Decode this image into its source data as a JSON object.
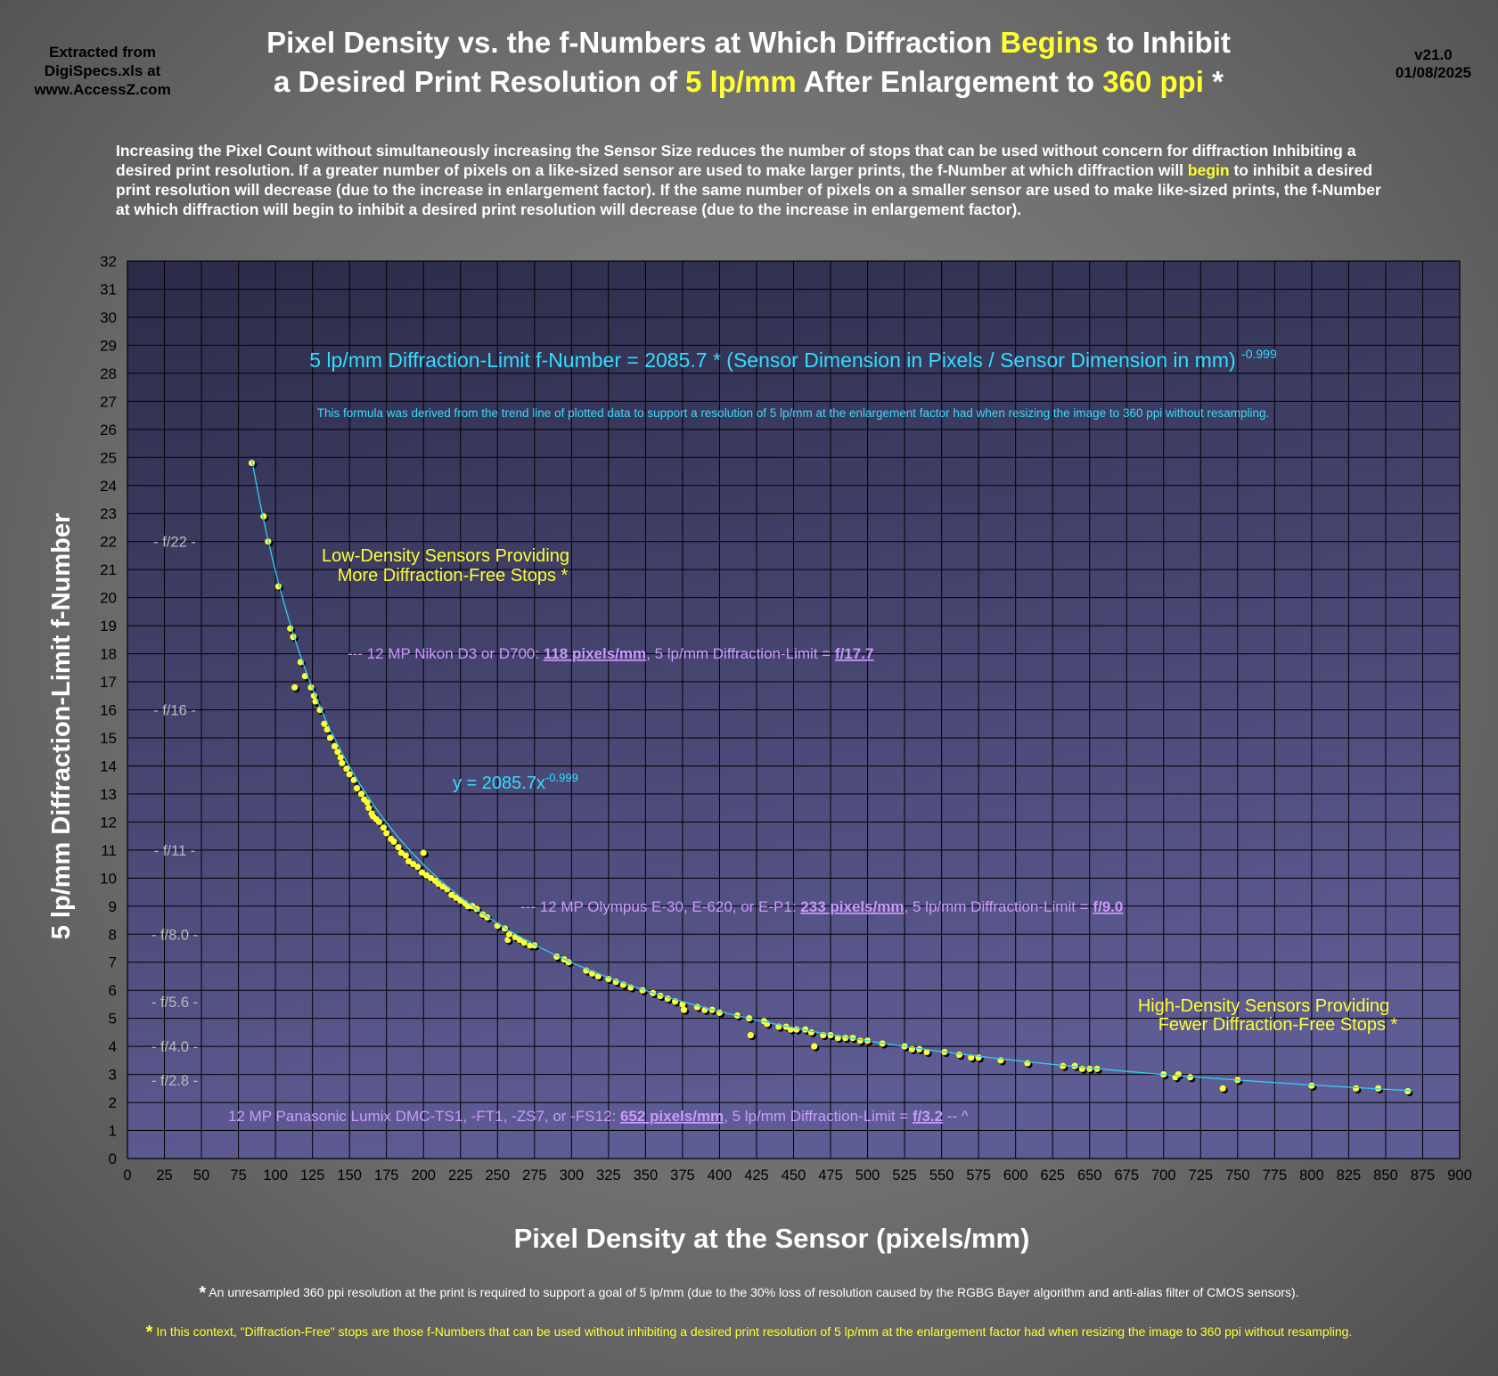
{
  "header": {
    "source_lines": [
      "Extracted from",
      "DigiSpecs.xls at",
      "www.AccessZ.com"
    ],
    "version": "v21.0",
    "date": "01/08/2025",
    "title_line1_a": "Pixel Density vs. the f-Numbers at Which Diffraction ",
    "title_line1_hl": "Begins",
    "title_line1_b": " to Inhibit",
    "title_line2_a": "a Desired Print Resolution of ",
    "title_line2_hl1": "5 lp/mm",
    "title_line2_b": " After Enlargement to ",
    "title_line2_hl2": "360 ppi",
    "title_line2_c": " *"
  },
  "intro": {
    "part1": "Increasing the Pixel Count without simultaneously increasing the Sensor Size reduces the number of stops that can be used without concern for diffraction Inhibiting a desired print resolution.  If a greater number of pixels on a like-sized sensor are used to make larger prints, the f-Number at which diffraction will ",
    "highlight": "begin",
    "part2": " to inhibit a desired print resolution will decrease (due to the increase in enlargement factor).  If the same number of pixels on a smaller sensor are used to make like-sized prints, the f-Number at which diffraction will begin to inhibit a desired print resolution will decrease (due to the increase in enlargement factor)."
  },
  "footnotes": {
    "note1_star": "*",
    "note1": " An unresampled 360 ppi resolution at the print is required to support a goal of 5 lp/mm (due to the 30% loss of resolution caused by the RGBG Bayer algorithm and anti-alias filter of CMOS sensors).",
    "note2_star": "*",
    "note2": "  In this context, \"Diffraction-Free\" stops are those f-Numbers that can be used without inhibiting a desired print resolution of 5 lp/mm at the enlargement factor had when resizing the image to 360 ppi without resampling."
  },
  "colors": {
    "plot_bg_top": "#2b2b48",
    "plot_bg_bottom": "#5e5c94",
    "grid": "#000000",
    "trend": "#33ccee",
    "point": "#ffff33",
    "formula": "#33ddff",
    "annotation_purple": "#cc99ff",
    "annotation_yellow": "#ffff33",
    "fstop_label": "#bbbbbb"
  },
  "chart_data": {
    "type": "scatter",
    "xlabel": "Pixel Density at the Sensor (pixels/mm)",
    "ylabel": "5 lp/mm Diffraction-Limit f-Number",
    "xlim": [
      0,
      900
    ],
    "ylim": [
      0,
      32
    ],
    "x_ticks": [
      0,
      25,
      50,
      75,
      100,
      125,
      150,
      175,
      200,
      225,
      250,
      275,
      300,
      325,
      350,
      375,
      400,
      425,
      450,
      475,
      500,
      525,
      550,
      575,
      600,
      625,
      650,
      675,
      700,
      725,
      750,
      775,
      800,
      825,
      850,
      875,
      900
    ],
    "y_ticks": [
      0,
      1,
      2,
      3,
      4,
      5,
      6,
      7,
      8,
      9,
      10,
      11,
      12,
      13,
      14,
      15,
      16,
      17,
      18,
      19,
      20,
      21,
      22,
      23,
      24,
      25,
      26,
      27,
      28,
      29,
      30,
      31,
      32
    ],
    "grid": true,
    "legend": "none",
    "trendline": {
      "label_prefix": "y = 2085.7x",
      "label_exp": "-0.999",
      "a": 2085.7,
      "b": -0.999,
      "x_from": 84,
      "x_to": 868
    },
    "formula_prefix": "5 lp/mm Diffraction-Limit f-Number = 2085.7 * (Sensor Dimension in Pixels / Sensor Dimension in mm) ",
    "formula_exp": "-0.999",
    "formula_note": "This formula was derived from the trend line of plotted data to support a resolution of 5 lp/mm at the enlargement factor had when resizing the image to 360 ppi without resampling.",
    "fstop_markers": [
      {
        "label": "- f/22 -",
        "y": 22
      },
      {
        "label": "- f/16 -",
        "y": 16
      },
      {
        "label": "- f/11 -",
        "y": 11
      },
      {
        "label": "- f/8.0 -",
        "y": 8
      },
      {
        "label": "- f/5.6 -",
        "y": 5.6
      },
      {
        "label": "- f/4.0 -",
        "y": 4
      },
      {
        "label": "- f/2.8 -",
        "y": 2.8
      }
    ],
    "annotations": {
      "low_density": [
        "Low-Density Sensors Providing",
        "More Diffraction-Free Stops *"
      ],
      "high_density": [
        "High-Density Sensors Providing",
        "Fewer Diffraction-Free Stops *"
      ],
      "nikon": {
        "pre": "--- 12 MP Nikon D3 or D700: ",
        "density": "118 pixels/mm",
        "mid": ", 5 lp/mm Diffraction-Limit = ",
        "fnum": "f/17.7"
      },
      "olympus": {
        "pre": "--- 12 MP Olympus E-30, E-620, or E-P1: ",
        "density": "233 pixels/mm",
        "mid": ", 5 lp/mm Diffraction-Limit = ",
        "fnum": "f/9.0"
      },
      "panasonic": {
        "pre": "12 MP Panasonic Lumix DMC-TS1, -FT1, -ZS7, or -FS12:  ",
        "density": "652 pixels/mm",
        "mid": ", 5 lp/mm Diffraction-Limit = ",
        "fnum": "f/3.2",
        "post": "  -- ^"
      }
    },
    "points": [
      [
        84,
        24.8
      ],
      [
        92,
        22.9
      ],
      [
        95,
        22.0
      ],
      [
        102,
        20.4
      ],
      [
        110,
        18.9
      ],
      [
        112,
        18.6
      ],
      [
        113,
        16.8
      ],
      [
        117,
        17.7
      ],
      [
        120,
        17.2
      ],
      [
        124,
        16.8
      ],
      [
        126,
        16.5
      ],
      [
        127,
        16.3
      ],
      [
        130,
        16.0
      ],
      [
        133,
        15.5
      ],
      [
        135,
        15.3
      ],
      [
        137,
        15.0
      ],
      [
        140,
        14.7
      ],
      [
        142,
        14.5
      ],
      [
        144,
        14.3
      ],
      [
        145,
        14.1
      ],
      [
        148,
        13.9
      ],
      [
        150,
        13.7
      ],
      [
        153,
        13.5
      ],
      [
        155,
        13.2
      ],
      [
        158,
        13.0
      ],
      [
        160,
        12.8
      ],
      [
        162,
        12.7
      ],
      [
        163,
        12.5
      ],
      [
        165,
        12.3
      ],
      [
        166,
        12.2
      ],
      [
        168,
        12.1
      ],
      [
        170,
        12.0
      ],
      [
        173,
        11.8
      ],
      [
        175,
        11.6
      ],
      [
        178,
        11.4
      ],
      [
        180,
        11.3
      ],
      [
        183,
        11.1
      ],
      [
        185,
        10.9
      ],
      [
        188,
        10.8
      ],
      [
        190,
        10.6
      ],
      [
        193,
        10.5
      ],
      [
        196,
        10.4
      ],
      [
        199,
        10.2
      ],
      [
        200,
        10.9
      ],
      [
        202,
        10.1
      ],
      [
        205,
        10.0
      ],
      [
        208,
        9.9
      ],
      [
        210,
        9.8
      ],
      [
        213,
        9.7
      ],
      [
        216,
        9.6
      ],
      [
        219,
        9.4
      ],
      [
        222,
        9.3
      ],
      [
        225,
        9.2
      ],
      [
        228,
        9.1
      ],
      [
        230,
        9.0
      ],
      [
        233,
        9.0
      ],
      [
        236,
        8.9
      ],
      [
        240,
        8.7
      ],
      [
        243,
        8.6
      ],
      [
        250,
        8.3
      ],
      [
        255,
        8.2
      ],
      [
        257,
        7.8
      ],
      [
        258,
        8.0
      ],
      [
        262,
        7.9
      ],
      [
        265,
        7.8
      ],
      [
        268,
        7.7
      ],
      [
        272,
        7.6
      ],
      [
        275,
        7.6
      ],
      [
        290,
        7.2
      ],
      [
        295,
        7.1
      ],
      [
        298,
        7.0
      ],
      [
        310,
        6.7
      ],
      [
        314,
        6.6
      ],
      [
        318,
        6.5
      ],
      [
        325,
        6.4
      ],
      [
        330,
        6.3
      ],
      [
        335,
        6.2
      ],
      [
        340,
        6.1
      ],
      [
        348,
        6.0
      ],
      [
        355,
        5.9
      ],
      [
        360,
        5.8
      ],
      [
        365,
        5.7
      ],
      [
        370,
        5.6
      ],
      [
        375,
        5.5
      ],
      [
        376,
        5.3
      ],
      [
        385,
        5.4
      ],
      [
        390,
        5.3
      ],
      [
        395,
        5.3
      ],
      [
        400,
        5.2
      ],
      [
        412,
        5.1
      ],
      [
        420,
        5.0
      ],
      [
        421,
        4.4
      ],
      [
        430,
        4.9
      ],
      [
        432,
        4.8
      ],
      [
        440,
        4.7
      ],
      [
        445,
        4.7
      ],
      [
        448,
        4.6
      ],
      [
        452,
        4.6
      ],
      [
        458,
        4.6
      ],
      [
        462,
        4.5
      ],
      [
        464,
        4.0
      ],
      [
        470,
        4.4
      ],
      [
        475,
        4.4
      ],
      [
        480,
        4.3
      ],
      [
        485,
        4.3
      ],
      [
        490,
        4.3
      ],
      [
        495,
        4.2
      ],
      [
        500,
        4.2
      ],
      [
        510,
        4.1
      ],
      [
        525,
        4.0
      ],
      [
        530,
        3.9
      ],
      [
        535,
        3.9
      ],
      [
        540,
        3.8
      ],
      [
        552,
        3.8
      ],
      [
        562,
        3.7
      ],
      [
        570,
        3.6
      ],
      [
        575,
        3.6
      ],
      [
        590,
        3.5
      ],
      [
        608,
        3.4
      ],
      [
        632,
        3.3
      ],
      [
        640,
        3.3
      ],
      [
        645,
        3.2
      ],
      [
        650,
        3.2
      ],
      [
        655,
        3.2
      ],
      [
        700,
        3.0
      ],
      [
        708,
        2.9
      ],
      [
        710,
        3.0
      ],
      [
        718,
        2.9
      ],
      [
        740,
        2.5
      ],
      [
        750,
        2.8
      ],
      [
        800,
        2.6
      ],
      [
        830,
        2.5
      ],
      [
        845,
        2.5
      ],
      [
        865,
        2.4
      ]
    ]
  }
}
